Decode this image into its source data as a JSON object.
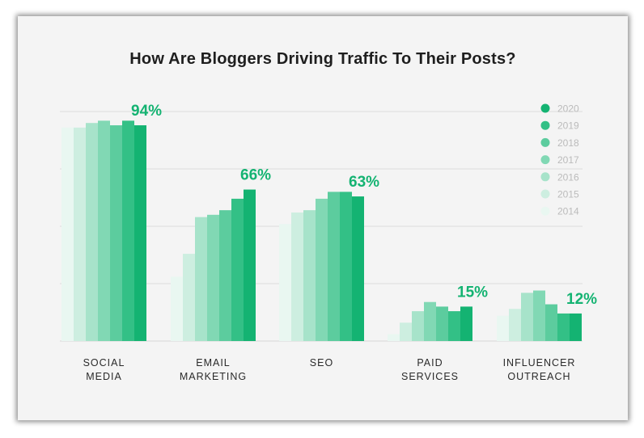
{
  "chart_data": {
    "type": "bar",
    "title": "How Are Bloggers Driving Traffic To Their Posts?",
    "categories": [
      [
        "SOCIAL",
        "MEDIA"
      ],
      [
        "EMAIL",
        "MARKETING"
      ],
      [
        "SEO"
      ],
      [
        "PAID",
        "SERVICES"
      ],
      [
        "INFLUENCER",
        "OUTREACH"
      ]
    ],
    "series": [
      {
        "name": "2014",
        "color": "#e9f7f1",
        "values": [
          93,
          28,
          51,
          3,
          11
        ]
      },
      {
        "name": "2015",
        "color": "#cdeee0",
        "values": [
          93,
          38,
          56,
          8,
          14
        ]
      },
      {
        "name": "2016",
        "color": "#a7e3ca",
        "values": [
          95,
          54,
          57,
          13,
          21
        ]
      },
      {
        "name": "2017",
        "color": "#81d8b4",
        "values": [
          96,
          55,
          62,
          17,
          22
        ]
      },
      {
        "name": "2018",
        "color": "#5ccc9e",
        "values": [
          94,
          57,
          65,
          15,
          16
        ]
      },
      {
        "name": "2019",
        "color": "#33c086",
        "values": [
          96,
          62,
          65,
          13,
          12
        ]
      },
      {
        "name": "2020",
        "color": "#14b372",
        "values": [
          94,
          66,
          63,
          15,
          12
        ]
      }
    ],
    "value_labels": [
      "94%",
      "66%",
      "63%",
      "15%",
      "12%"
    ],
    "ylim": [
      0,
      100
    ],
    "grid": true,
    "legend_position": "top-right"
  }
}
